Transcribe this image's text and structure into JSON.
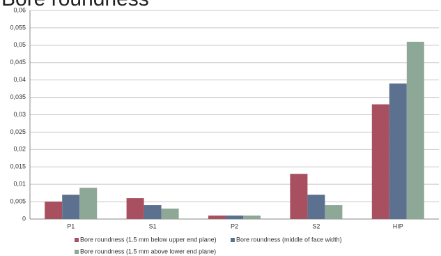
{
  "chart_data": {
    "type": "bar",
    "title": "Bore roundness",
    "categories": [
      "P1",
      "S1",
      "P2",
      "S2",
      "HIP"
    ],
    "series": [
      {
        "name": "Bore roundness (1.5 mm below upper end plane)",
        "color": "#a8505f",
        "values": [
          0.005,
          0.006,
          0.001,
          0.013,
          0.033
        ]
      },
      {
        "name": "Bore roundness  (middle of face width)",
        "color": "#5c7190",
        "values": [
          0.007,
          0.004,
          0.001,
          0.007,
          0.039
        ]
      },
      {
        "name": "Bore roundness (1.5 mm above lower end plane)",
        "color": "#8ea898",
        "values": [
          0.009,
          0.003,
          0.001,
          0.004,
          0.051
        ]
      }
    ],
    "ylim": [
      0,
      0.06
    ],
    "yticks": [
      0,
      {
        "value": 0.005,
        "label": "0,005"
      },
      {
        "value": 0.01,
        "label": "0,01"
      },
      {
        "value": 0.015,
        "label": "0,015"
      },
      {
        "value": 0.02,
        "label": "0,02"
      },
      {
        "value": 0.025,
        "label": "0,025"
      },
      {
        "value": 0.03,
        "label": "0,03"
      },
      {
        "value": 0.035,
        "label": "0,035"
      },
      {
        "value": 0.04,
        "label": "0,04"
      },
      {
        "value": 0.045,
        "label": "0,045"
      },
      {
        "value": 0.05,
        "label": "0,05"
      },
      {
        "value": 0.055,
        "label": "0,055"
      },
      {
        "value": 0.06,
        "label": "0,06"
      }
    ],
    "grid": true
  }
}
